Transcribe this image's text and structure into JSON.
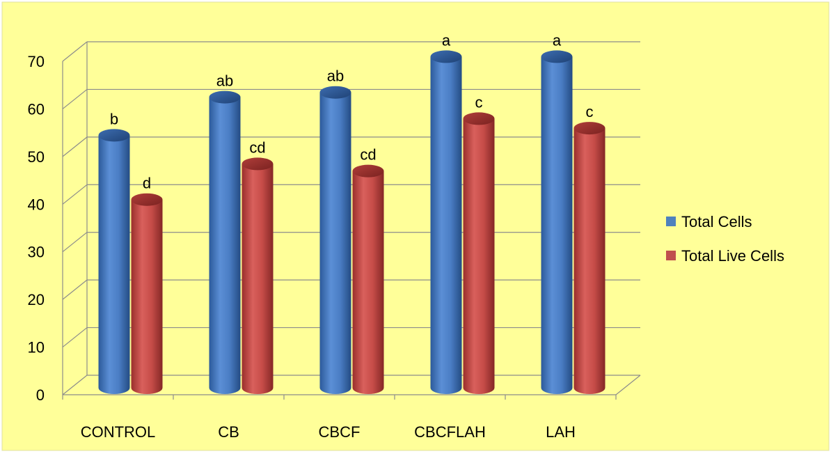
{
  "chart_data": {
    "type": "bar",
    "style": "3d-cylinder",
    "background_color": "#ffff99",
    "grid": true,
    "legend_position": "right",
    "categories": [
      "CONTROL",
      "CB",
      "CBCF",
      "CBCFLAH",
      "LAH"
    ],
    "ylim": [
      0,
      70
    ],
    "yticks": [
      "0",
      "10",
      "20",
      "30",
      "40",
      "50",
      "60",
      "70"
    ],
    "series": [
      {
        "name": "Total Cells",
        "color": "#4f81bd",
        "values": [
          53,
          61,
          62,
          69.5,
          69.5
        ],
        "labels": [
          "b",
          "ab",
          "ab",
          "a",
          "a"
        ]
      },
      {
        "name": "Total Live Cells",
        "color": "#c0504d",
        "values": [
          39.5,
          47,
          45.5,
          56.5,
          54.5
        ],
        "labels": [
          "d",
          "cd",
          "cd",
          "c",
          "c"
        ]
      }
    ]
  }
}
